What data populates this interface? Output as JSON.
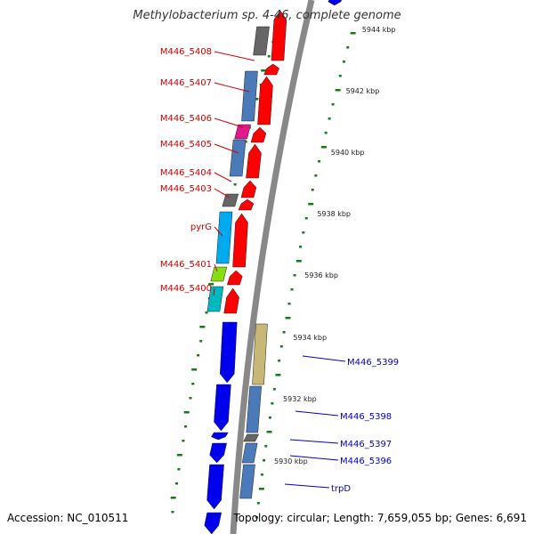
{
  "title": "Methylobacterium sp. 4-46, complete genome",
  "accession": "Accession: NC_010511",
  "topology": "Topology: circular; Length: 7,659,055 bp; Genes: 6,691",
  "colors": {
    "backbone": "#888888",
    "forward_gene_label": "#cc0000",
    "reverse_gene_label": "#0000cc",
    "gc_tick": "#1a7a1a"
  },
  "kbp_ticks": [
    "5944 kbp",
    "5942 kbp",
    "5940 kbp",
    "5938 kbp",
    "5936 kbp",
    "5934 kbp",
    "5932 kbp",
    "5930 kbp"
  ],
  "forward_genes": [
    "M446_5408",
    "M446_5407",
    "M446_5406",
    "M446_5405",
    "M446_5404",
    "M446_5403",
    "pyrG",
    "M446_5401",
    "M446_5400"
  ],
  "reverse_genes": [
    "M446_5399",
    "M446_5398",
    "M446_5397",
    "M446_5396",
    "trpD"
  ]
}
